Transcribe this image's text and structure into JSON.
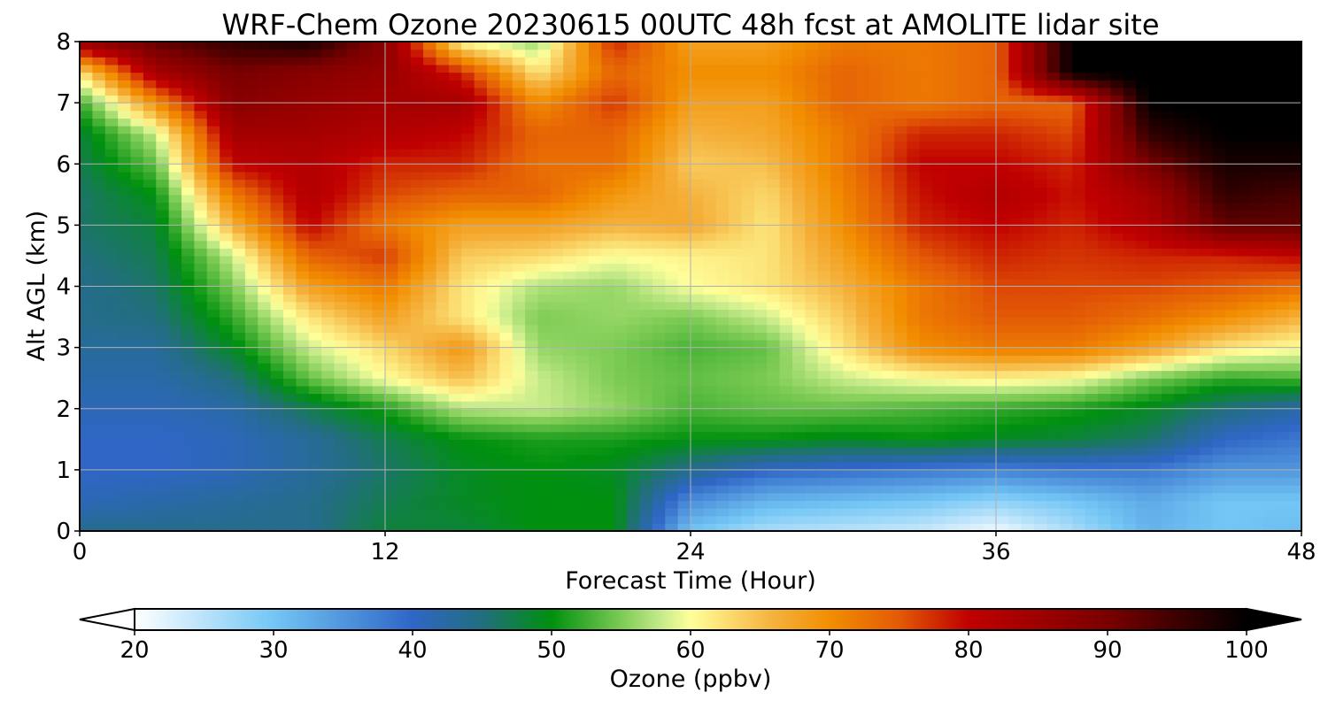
{
  "chart_data": {
    "type": "heatmap",
    "title": "WRF-Chem Ozone  20230615 00UTC 48h fcst at AMOLITE lidar site",
    "xlabel": "Forecast Time (Hour)",
    "ylabel": "Alt AGL (km)",
    "xlim": [
      0,
      48
    ],
    "ylim": [
      0,
      8
    ],
    "x_ticks": [
      "0",
      "12",
      "24",
      "36",
      "48"
    ],
    "y_ticks": [
      "0",
      "1",
      "2",
      "3",
      "4",
      "5",
      "6",
      "7",
      "8"
    ],
    "grid": true,
    "x": [
      0,
      3,
      6,
      9,
      12,
      15,
      18,
      21,
      24,
      27,
      30,
      33,
      36,
      39,
      42,
      45,
      48
    ],
    "y": [
      0,
      0.5,
      1,
      1.5,
      2,
      2.5,
      3,
      3.5,
      4,
      4.5,
      5,
      5.5,
      6,
      6.5,
      7,
      7.5,
      8
    ],
    "z": [
      [
        44,
        44,
        44,
        44,
        48,
        48,
        50,
        50,
        30,
        26,
        25,
        24,
        21,
        26,
        32,
        30,
        31
      ],
      [
        41,
        42,
        43,
        44,
        47,
        49,
        50,
        50,
        36,
        32,
        31,
        30,
        28,
        30,
        33,
        30,
        30
      ],
      [
        40,
        40,
        41,
        43,
        46,
        49,
        50,
        49,
        44,
        40,
        39,
        38,
        37,
        38,
        38,
        35,
        35
      ],
      [
        40,
        40,
        41,
        43,
        47,
        50,
        51,
        51,
        50,
        50,
        49,
        50,
        49,
        48,
        46,
        40,
        38
      ],
      [
        41,
        41,
        42,
        47,
        51,
        57,
        58,
        56,
        53,
        54,
        54,
        53,
        52,
        51,
        49,
        45,
        42
      ],
      [
        42,
        42,
        45,
        54,
        60,
        65,
        58,
        55,
        54,
        55,
        58,
        60,
        61,
        60,
        55,
        52,
        53
      ],
      [
        43,
        43,
        49,
        58,
        63,
        69,
        56,
        55,
        53,
        54,
        62,
        70,
        72,
        72,
        68,
        62,
        60
      ],
      [
        44,
        45,
        52,
        62,
        68,
        62,
        55,
        56,
        55,
        58,
        64,
        72,
        75,
        75,
        73,
        70,
        66
      ],
      [
        44,
        46,
        55,
        68,
        72,
        62,
        57,
        56,
        60,
        62,
        66,
        72,
        76,
        76,
        76,
        75,
        73
      ],
      [
        45,
        47,
        58,
        74,
        77,
        64,
        63,
        60,
        61,
        62,
        68,
        75,
        78,
        77,
        78,
        78,
        80
      ],
      [
        46,
        48,
        66,
        80,
        72,
        68,
        68,
        66,
        67,
        62,
        70,
        78,
        80,
        78,
        82,
        92,
        92
      ],
      [
        46,
        50,
        72,
        82,
        76,
        74,
        74,
        69,
        66,
        63,
        71,
        79,
        82,
        79,
        84,
        96,
        94
      ],
      [
        47,
        54,
        80,
        82,
        78,
        78,
        73,
        73,
        64,
        65,
        72,
        80,
        80,
        78,
        90,
        98,
        98
      ],
      [
        48,
        58,
        84,
        84,
        82,
        80,
        74,
        74,
        66,
        67,
        72,
        78,
        78,
        76,
        96,
        100,
        100
      ],
      [
        52,
        70,
        88,
        86,
        84,
        84,
        70,
        77,
        68,
        68,
        74,
        72,
        74,
        74,
        100,
        101,
        101
      ],
      [
        62,
        84,
        90,
        88,
        86,
        78,
        62,
        74,
        70,
        70,
        74,
        72,
        74,
        100,
        101,
        101,
        101
      ],
      [
        86,
        92,
        96,
        98,
        88,
        60,
        56,
        78,
        68,
        68,
        72,
        72,
        74,
        100,
        101,
        101,
        101
      ]
    ],
    "colorbar": {
      "label": "Ozone  (ppbv)",
      "min": 20,
      "max": 100,
      "extend": "both",
      "ticks": [
        "20",
        "30",
        "40",
        "50",
        "60",
        "70",
        "80",
        "90",
        "100"
      ],
      "under_color": "#ffffff",
      "over_color": "#000000",
      "stops": [
        [
          20,
          "#ffffff"
        ],
        [
          30,
          "#73c6f5"
        ],
        [
          40,
          "#2f66c6"
        ],
        [
          45,
          "#226e7e"
        ],
        [
          50,
          "#00900e"
        ],
        [
          55,
          "#7ccb54"
        ],
        [
          58,
          "#c9ec8c"
        ],
        [
          60,
          "#ffff9a"
        ],
        [
          66,
          "#f5b13c"
        ],
        [
          70,
          "#f28e00"
        ],
        [
          75,
          "#e35a06"
        ],
        [
          80,
          "#c00000"
        ],
        [
          90,
          "#7a0000"
        ],
        [
          100,
          "#000000"
        ]
      ]
    }
  }
}
